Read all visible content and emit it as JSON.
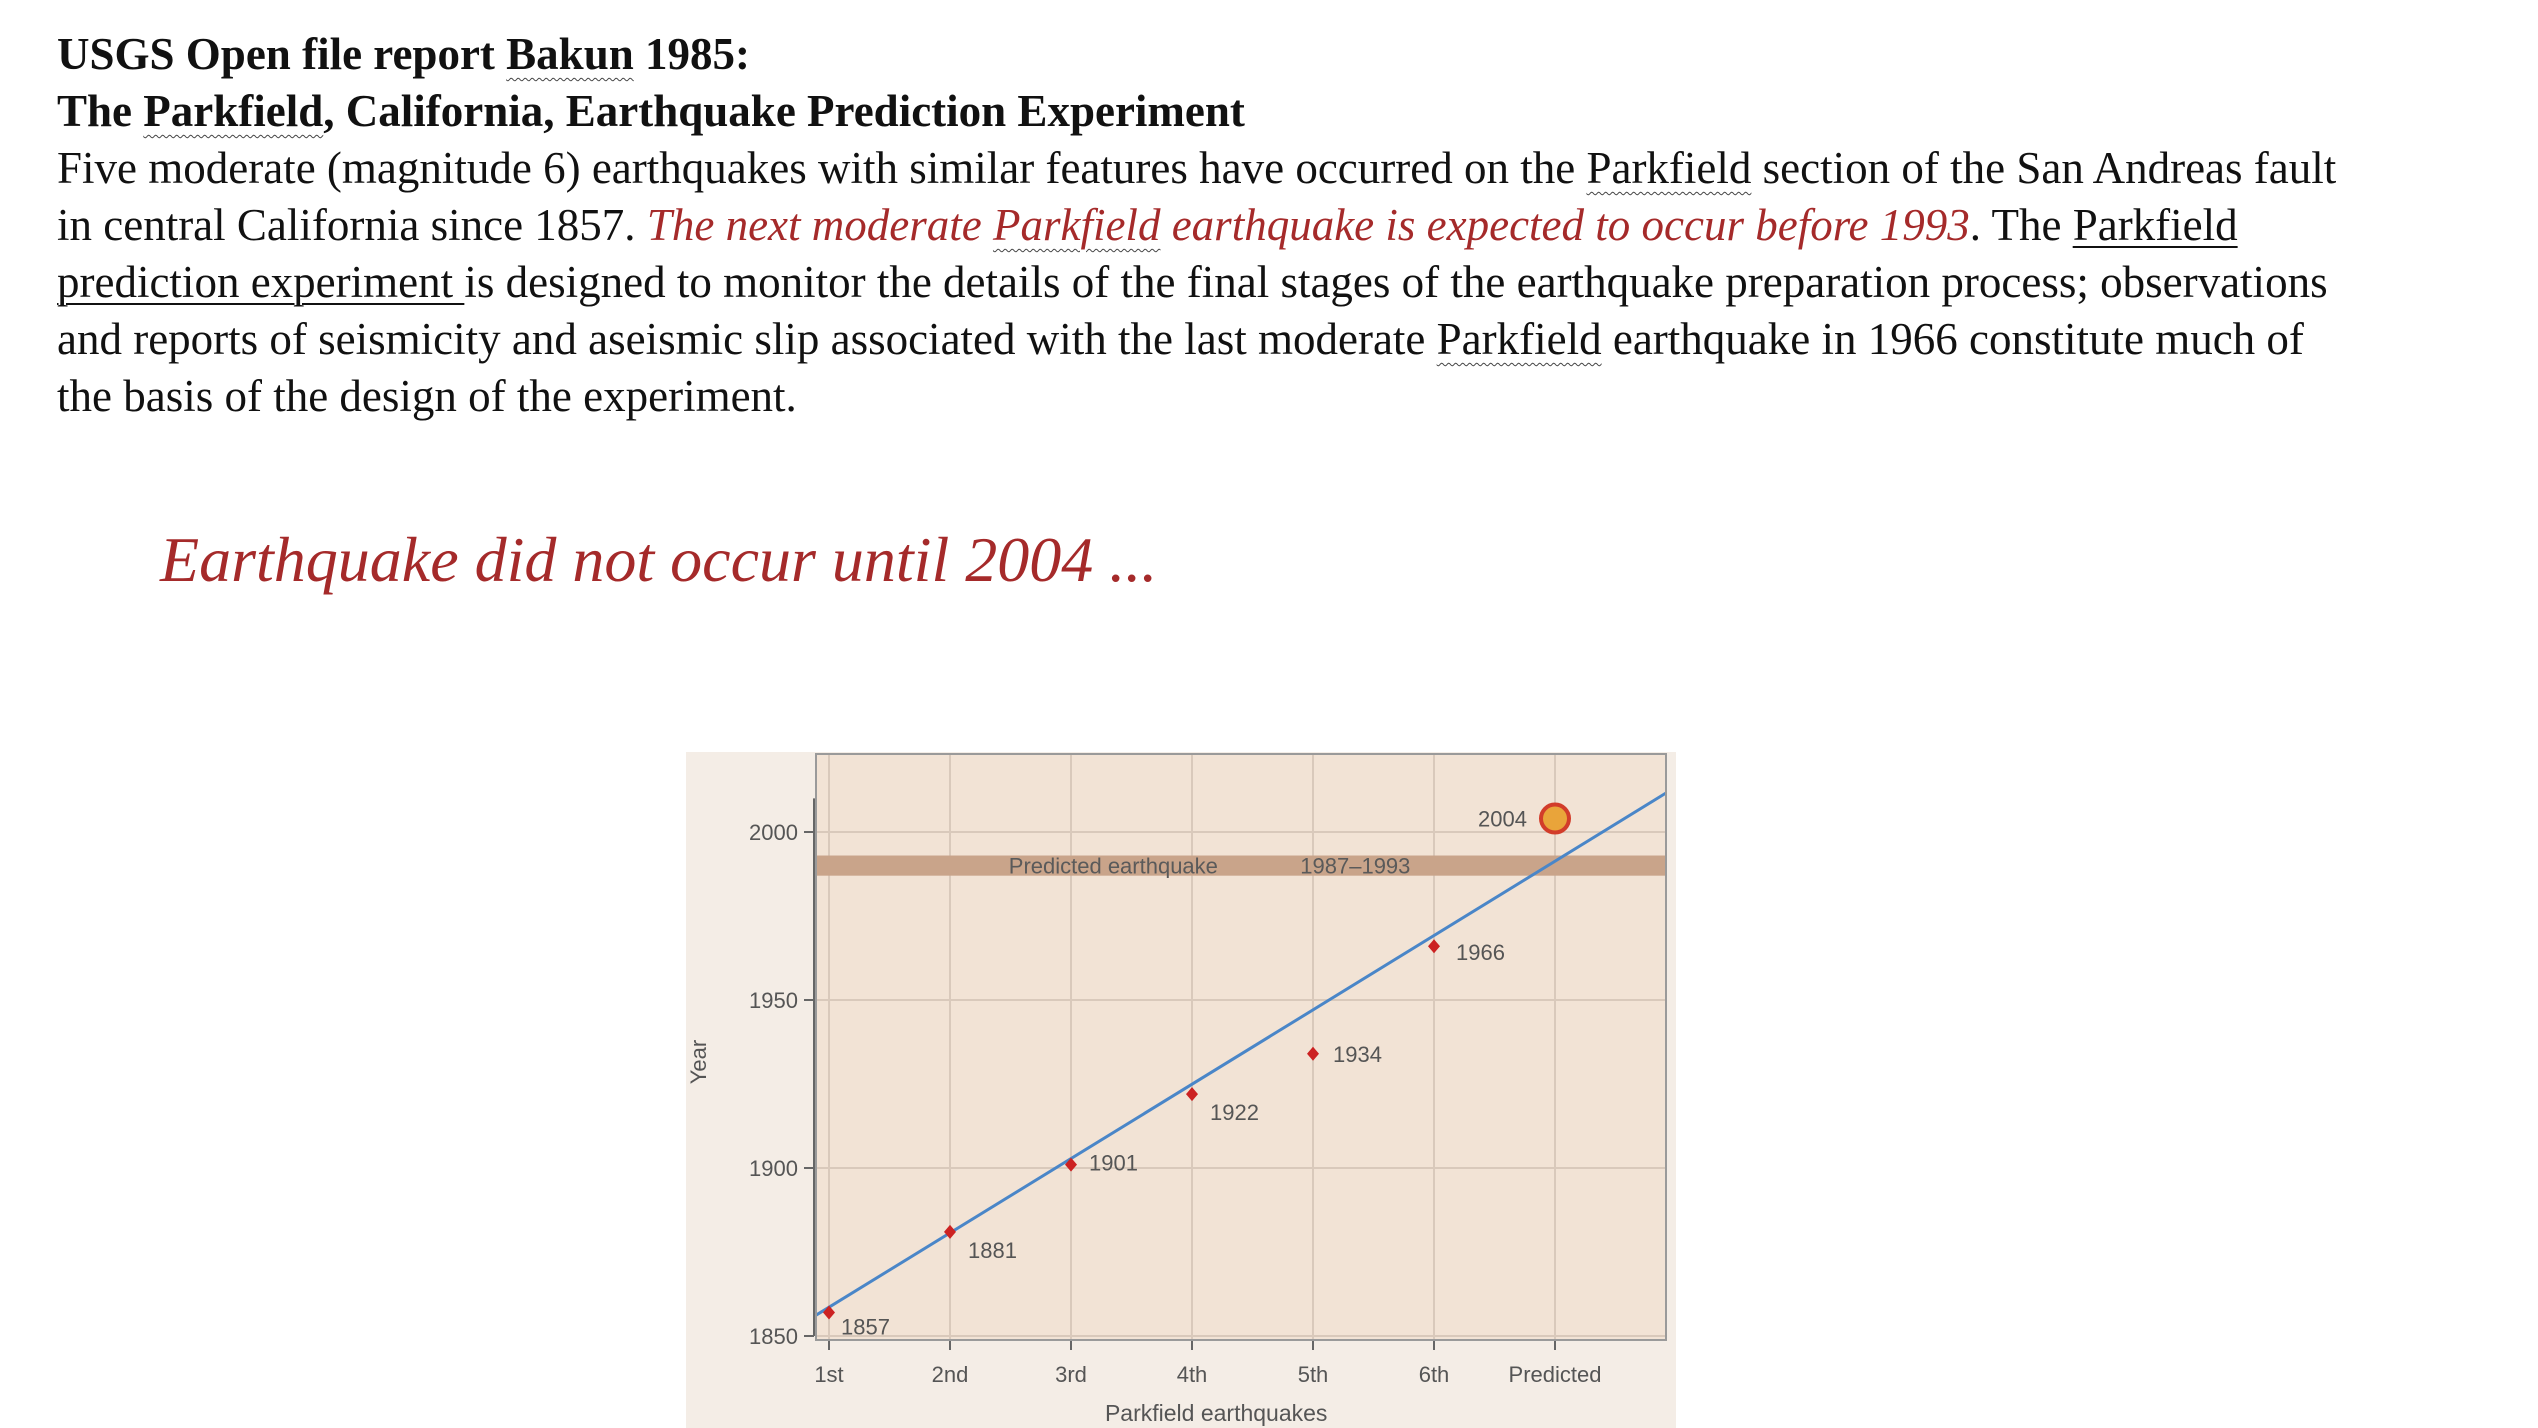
{
  "header": {
    "line1_prefix": "USGS Open file report ",
    "line1_name": "Bakun",
    "line1_suffix": " 1985:",
    "line2_prefix": "The ",
    "line2_name": "Parkfield",
    "line2_suffix": ", California, Earthquake Prediction Experiment"
  },
  "paragraph": {
    "l1_a": "Five moderate (magnitude 6) earthquakes with similar features have occurred on the ",
    "l1_b": "Parkfield",
    "l1_c": " section of the San Andreas fault",
    "l2_a": "in central California since 1857. ",
    "l2_b": "The next moderate ",
    "l2_c": "Parkfield",
    "l2_d": " earthquake is expected to occur before 1993",
    "l2_e": ". The ",
    "l2_f": "Parkfield",
    "l3_a": "prediction experiment ",
    "l3_b": "is designed to monitor the details of the final stages of the earthquake preparation process; observations",
    "l4_a": "and reports of seismicity and aseismic slip associated with the last moderate ",
    "l4_b": "Parkfield",
    "l4_c": " earthquake in 1966 constitute much of",
    "l5": "the basis of the design of the experiment."
  },
  "headline": "Earthquake did not occur until 2004 ...",
  "chart_data": {
    "type": "scatter",
    "xlabel": "Parkfield earthquakes",
    "ylabel": "Year",
    "categories": [
      "1st",
      "2nd",
      "3rd",
      "4th",
      "5th",
      "6th",
      "Predicted"
    ],
    "ylim": [
      1850,
      2010
    ],
    "yticks": [
      1850,
      1900,
      1950,
      2000
    ],
    "points": [
      {
        "x": 1,
        "y": 1857,
        "label": "1857"
      },
      {
        "x": 2,
        "y": 1881,
        "label": "1881"
      },
      {
        "x": 3,
        "y": 1901,
        "label": "1901"
      },
      {
        "x": 4,
        "y": 1922,
        "label": "1922"
      },
      {
        "x": 5,
        "y": 1934,
        "label": "1934"
      },
      {
        "x": 6,
        "y": 1966,
        "label": "1966"
      }
    ],
    "trend_line": {
      "x": [
        1,
        8
      ],
      "y": [
        1856,
        2017
      ]
    },
    "predicted_band": {
      "y": [
        1987,
        1993
      ],
      "label_a": "Predicted earthquake",
      "label_b": "1987–1993"
    },
    "actual_event": {
      "x": 7,
      "y": 2004,
      "label": "2004"
    },
    "grid": true,
    "colors": {
      "panel": "#f2e3d5",
      "band": "#c9a48a",
      "trend": "#4a86c8",
      "point": "#cc2222",
      "actual_fill": "#e9a43a",
      "actual_ring": "#d23c2a",
      "grid": "#d9c9bb"
    }
  }
}
